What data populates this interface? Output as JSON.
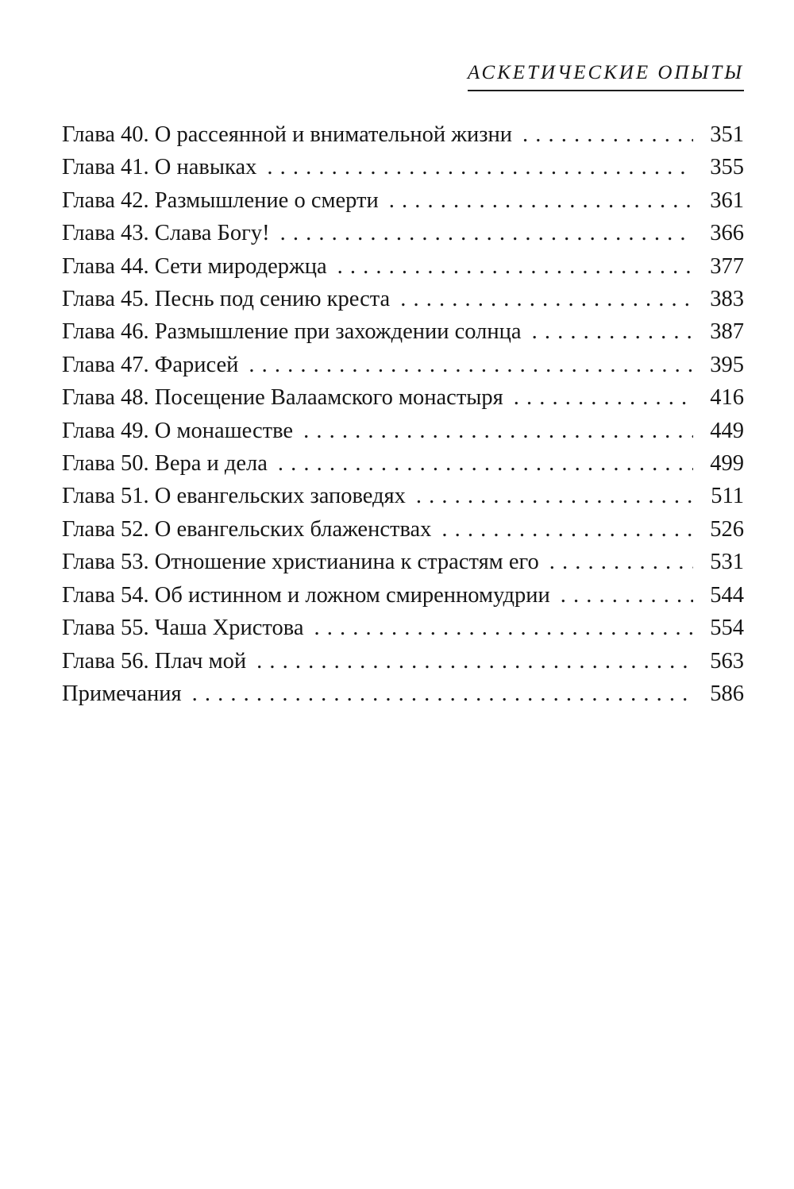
{
  "header": {
    "title": "АСКЕТИЧЕСКИЕ ОПЫТЫ"
  },
  "toc": {
    "dot_leader": ". . . . . . . . . . . . . . . . . . . . . . . . . . . . . . . . . . . . . . . . . . . . . . . . . . . . . . . . . . . . . . . . . . . . . . . . . . . . . . . .",
    "items": [
      {
        "title": "Глава 40. О рассеянной и внимательной жизни",
        "page": "351"
      },
      {
        "title": "Глава 41. О навыках",
        "page": "355"
      },
      {
        "title": "Глава 42. Размышление о смерти",
        "page": "361"
      },
      {
        "title": "Глава 43. Слава Богу!",
        "page": "366"
      },
      {
        "title": "Глава 44. Сети миродержца",
        "page": "377"
      },
      {
        "title": "Глава 45. Песнь под сению креста",
        "page": "383"
      },
      {
        "title": "Глава 46. Размышление при захождении солнца",
        "page": "387"
      },
      {
        "title": "Глава 47. Фарисей",
        "page": "395"
      },
      {
        "title": "Глава 48. Посещение Валаамского монастыря",
        "page": "416"
      },
      {
        "title": "Глава 49. О монашестве",
        "page": "449"
      },
      {
        "title": "Глава 50. Вера и дела",
        "page": "499"
      },
      {
        "title": "Глава 51. О евангельских заповедях",
        "page": "511"
      },
      {
        "title": "Глава 52. О евангельских блаженствах",
        "page": "526"
      },
      {
        "title": "Глава 53. Отношение христианина к страстям его",
        "page": "531"
      },
      {
        "title": "Глава 54. Об истинном и ложном смиренномудрии",
        "page": "544"
      },
      {
        "title": "Глава 55. Чаша Христова",
        "page": "554"
      },
      {
        "title": "Глава 56. Плач мой",
        "page": "563"
      },
      {
        "title": "Примечания",
        "page": "586"
      }
    ]
  }
}
